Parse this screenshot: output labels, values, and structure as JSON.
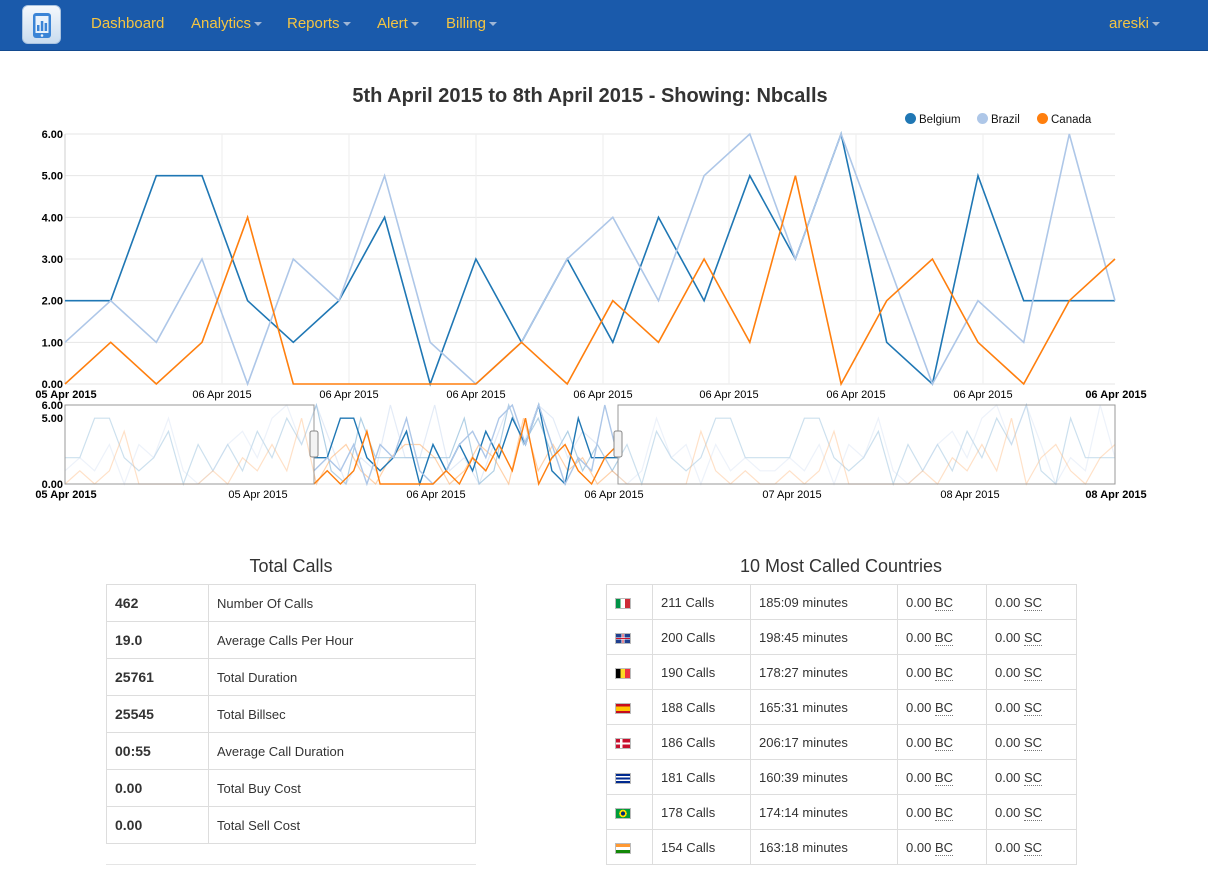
{
  "nav": {
    "logo_icon": "phone-chart-icon",
    "items": [
      {
        "label": "Dashboard",
        "dropdown": false
      },
      {
        "label": "Analytics",
        "dropdown": true
      },
      {
        "label": "Reports",
        "dropdown": true
      },
      {
        "label": "Alert",
        "dropdown": true
      },
      {
        "label": "Billing",
        "dropdown": true
      }
    ],
    "user": "areski"
  },
  "chart_title": "5th April 2015 to 8th April 2015 - Showing: Nbcalls",
  "chart_data": {
    "type": "line",
    "title": "5th April 2015 to 8th April 2015 - Showing: Nbcalls",
    "legend_position": "top-right",
    "ylim": [
      0,
      6
    ],
    "y_ticks": [
      "0.00",
      "1.00",
      "2.00",
      "3.00",
      "4.00",
      "5.00",
      "6.00"
    ],
    "x_ticks": [
      "05 Apr 2015",
      "06 Apr 2015",
      "06 Apr 2015",
      "06 Apr 2015",
      "06 Apr 2015",
      "06 Apr 2015",
      "06 Apr 2015",
      "06 Apr 2015",
      "06 Apr 2015"
    ],
    "series": [
      {
        "name": "Belgium",
        "color": "#1f77b4",
        "values": [
          2,
          2,
          5,
          5,
          2,
          1,
          2,
          4,
          0,
          3,
          1,
          3,
          1,
          4,
          2,
          5,
          3,
          6,
          1,
          0,
          5,
          2,
          2,
          2
        ]
      },
      {
        "name": "Brazil",
        "color": "#aec7e8",
        "values": [
          1,
          2,
          1,
          3,
          0,
          3,
          2,
          5,
          1,
          0,
          1,
          3,
          4,
          2,
          5,
          6,
          3,
          6,
          3,
          0,
          2,
          1,
          6,
          2
        ]
      },
      {
        "name": "Canada",
        "color": "#ff7f0e",
        "values": [
          0,
          1,
          0,
          1,
          4,
          0,
          0,
          0,
          0,
          0,
          1,
          0,
          2,
          1,
          3,
          1,
          5,
          0,
          2,
          3,
          1,
          0,
          2,
          3
        ]
      }
    ],
    "overview": {
      "y_ticks": [
        "0.00",
        "5.00",
        "6.00"
      ],
      "x_ticks": [
        "05 Apr 2015",
        "05 Apr 2015",
        "06 Apr 2015",
        "06 Apr 2015",
        "07 Apr 2015",
        "08 Apr 2015",
        "08 Apr 2015"
      ]
    }
  },
  "totals": {
    "title": "Total Calls",
    "rows": [
      {
        "value": "462",
        "label": "Number Of Calls"
      },
      {
        "value": "19.0",
        "label": "Average Calls Per Hour"
      },
      {
        "value": "25761",
        "label": "Total Duration"
      },
      {
        "value": "25545",
        "label": "Total Billsec"
      },
      {
        "value": "00:55",
        "label": "Average Call Duration"
      },
      {
        "value": "0.00",
        "label": "Total Buy Cost"
      },
      {
        "value": "0.00",
        "label": "Total Sell Cost"
      }
    ]
  },
  "countries": {
    "title": "10 Most Called Countries",
    "bc_abbr": "BC",
    "sc_abbr": "SC",
    "rows": [
      {
        "flag": "flag-italy-icon",
        "calls": "211 Calls",
        "minutes": "185:09 minutes",
        "bc": "0.00",
        "sc": "0.00"
      },
      {
        "flag": "flag-uk-icon",
        "calls": "200 Calls",
        "minutes": "198:45 minutes",
        "bc": "0.00",
        "sc": "0.00"
      },
      {
        "flag": "flag-belgium-icon",
        "calls": "190 Calls",
        "minutes": "178:27 minutes",
        "bc": "0.00",
        "sc": "0.00"
      },
      {
        "flag": "flag-spain-icon",
        "calls": "188 Calls",
        "minutes": "165:31 minutes",
        "bc": "0.00",
        "sc": "0.00"
      },
      {
        "flag": "flag-denmark-icon",
        "calls": "186 Calls",
        "minutes": "206:17 minutes",
        "bc": "0.00",
        "sc": "0.00"
      },
      {
        "flag": "flag-cuba-icon",
        "calls": "181 Calls",
        "minutes": "160:39 minutes",
        "bc": "0.00",
        "sc": "0.00"
      },
      {
        "flag": "flag-brazil-icon",
        "calls": "178 Calls",
        "minutes": "174:14 minutes",
        "bc": "0.00",
        "sc": "0.00"
      },
      {
        "flag": "flag-india-icon",
        "calls": "154 Calls",
        "minutes": "163:18 minutes",
        "bc": "0.00",
        "sc": "0.00"
      }
    ]
  }
}
